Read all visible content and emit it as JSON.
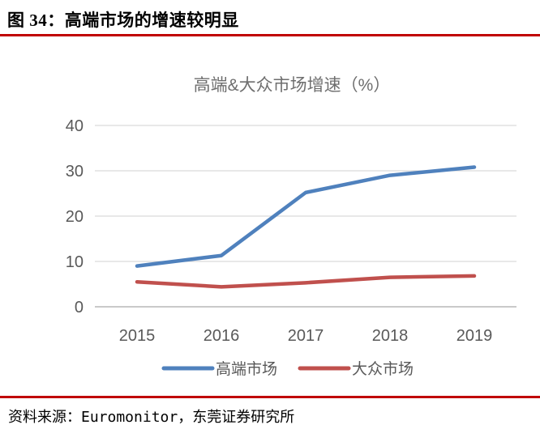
{
  "header": {
    "title": "图 34：高端市场的增速较明显"
  },
  "footer": {
    "source": "资料来源：Euromonitor，东莞证券研究所"
  },
  "colors": {
    "accent_rule": "#C00000",
    "axis_text": "#595959",
    "title_text": "#6E6E6E",
    "grid": "#D9D9D9",
    "baseline_grid": "#C9C9C9",
    "premium_blue": "#4F81BD",
    "mass_red": "#C0504D"
  },
  "chart_data": {
    "type": "line",
    "title": "高端&大众市场增速（%）",
    "categories": [
      "2015",
      "2016",
      "2017",
      "2018",
      "2019"
    ],
    "series": [
      {
        "name": "高端市场",
        "color": "#4F81BD",
        "values": [
          9.0,
          11.3,
          25.2,
          29.0,
          30.8
        ]
      },
      {
        "name": "大众市场",
        "color": "#C0504D",
        "values": [
          5.5,
          4.4,
          5.3,
          6.5,
          6.8
        ]
      }
    ],
    "xlabel": "",
    "ylabel": "",
    "ylim": [
      0,
      40
    ],
    "yticks": [
      0,
      10,
      20,
      30,
      40
    ],
    "grid": true,
    "legend_position": "bottom"
  }
}
